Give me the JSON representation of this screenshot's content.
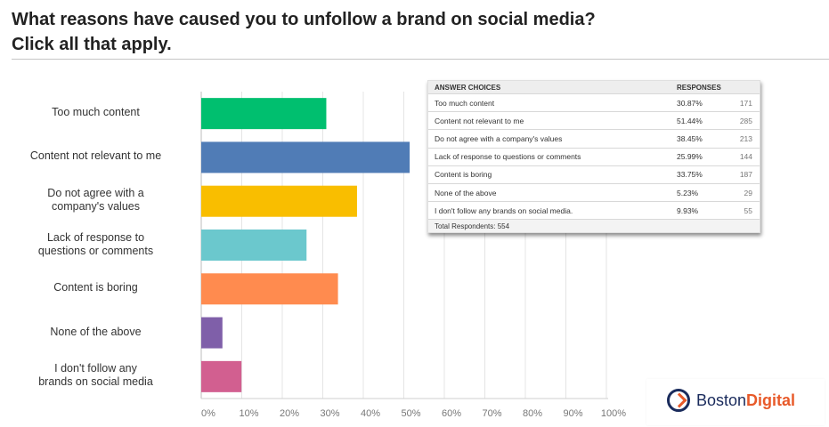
{
  "header": {
    "title_line1": "What reasons have caused you to unfollow a brand on social media?",
    "title_line2": "Click all that apply."
  },
  "chart_data": {
    "type": "bar",
    "orientation": "horizontal",
    "categories": [
      [
        "Too much content"
      ],
      [
        "Content not relevant to me"
      ],
      [
        "Do not agree with a",
        "company's values"
      ],
      [
        "Lack of response to",
        "questions or comments"
      ],
      [
        "Content is boring"
      ],
      [
        "None of the above"
      ],
      [
        "I don't follow any",
        "brands on social media"
      ]
    ],
    "values": [
      30.87,
      51.44,
      38.45,
      25.99,
      33.75,
      5.23,
      9.93
    ],
    "colors": [
      "#00bf6f",
      "#507cb6",
      "#f9be00",
      "#6bc8cd",
      "#ff8b4f",
      "#7f5fa9",
      "#d25f90"
    ],
    "xlim": [
      0,
      100
    ],
    "xticks": [
      "0%",
      "10%",
      "20%",
      "30%",
      "40%",
      "50%",
      "60%",
      "70%",
      "80%",
      "90%",
      "100%"
    ],
    "grid": true
  },
  "table": {
    "headers": [
      "ANSWER CHOICES",
      "RESPONSES",
      ""
    ],
    "rows": [
      [
        "Too much content",
        "30.87%",
        "171"
      ],
      [
        "Content not relevant to me",
        "51.44%",
        "285"
      ],
      [
        "Do not agree with a company's values",
        "38.45%",
        "213"
      ],
      [
        "Lack of response to questions or comments",
        "25.99%",
        "144"
      ],
      [
        "Content is boring",
        "33.75%",
        "187"
      ],
      [
        "None of the above",
        "5.23%",
        "29"
      ],
      [
        "I don't follow any brands on social media.",
        "9.93%",
        "55"
      ]
    ],
    "footer": "Total Respondents: 554"
  },
  "logo": {
    "word1": "Boston",
    "word2": "Digital",
    "icon": "chevron-right-circle-icon"
  }
}
